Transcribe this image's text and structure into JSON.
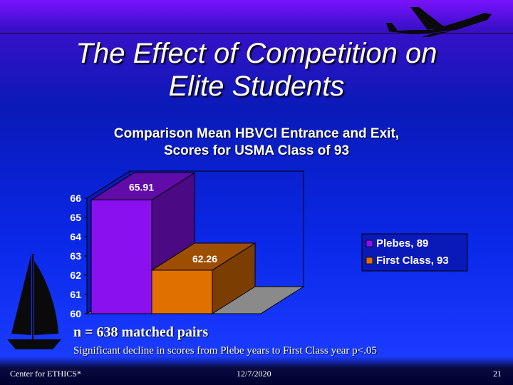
{
  "slide": {
    "title_line1": "The Effect of Competition on",
    "title_line2": "Elite Students",
    "note_pairs": "n = 638 matched pairs",
    "note_significance": "Significant decline in scores from Plebe years to First Class year p<.05",
    "footer_left": "Center for ETHICS*",
    "footer_date": "12/7/2020",
    "footer_page": "21",
    "decor": [
      "airplane-icon",
      "sailboat-icon"
    ]
  },
  "chart_data": {
    "type": "bar",
    "title_line1": "Comparison Mean HBVCI Entrance and Exit,",
    "title_line2": "Scores for USMA Class of 93",
    "ylim": [
      60,
      66
    ],
    "yticks": [
      "60",
      "61",
      "62",
      "63",
      "64",
      "65",
      "66"
    ],
    "series": [
      {
        "name": "Plebes, 89",
        "value": 65.91,
        "label": "65.91",
        "color": "#8a10f0"
      },
      {
        "name": "First Class, 93",
        "value": 62.26,
        "label": "62.26",
        "color": "#e07000"
      }
    ],
    "legend_position": "right",
    "style": "3d"
  }
}
